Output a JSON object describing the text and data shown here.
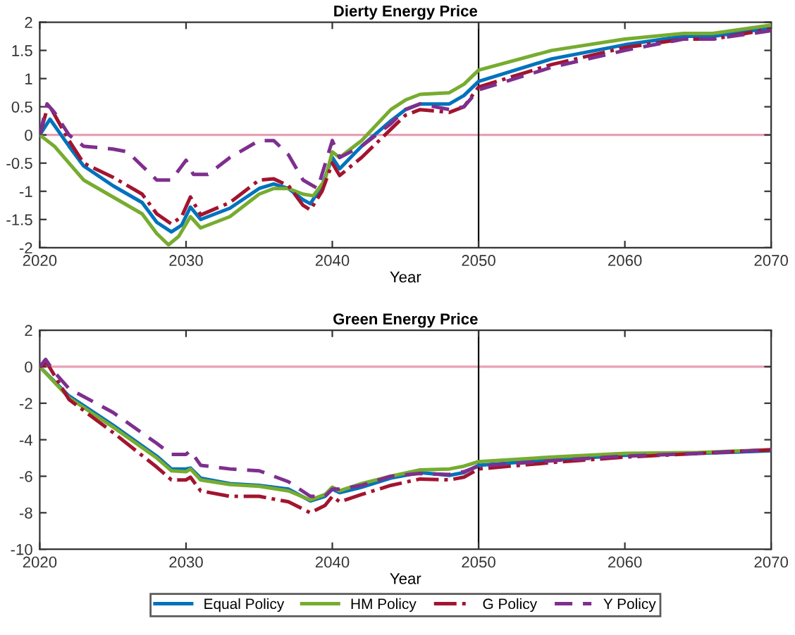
{
  "chart_data": [
    {
      "type": "line",
      "title": "Dierty Energy Price",
      "xlabel": "Year",
      "xlim": [
        2020,
        2070
      ],
      "xticks": [
        2020,
        2030,
        2040,
        2050,
        2060,
        2070
      ],
      "ylim": [
        -2,
        2
      ],
      "yticks": [
        -2,
        -1.5,
        -1,
        -0.5,
        0,
        0.5,
        1,
        1.5,
        2
      ],
      "grid": false,
      "ref_lines": [
        {
          "axis": "y",
          "value": 0,
          "color": "#e8a0b4"
        },
        {
          "axis": "x",
          "value": 2050,
          "color": "#000000"
        }
      ],
      "series": [
        {
          "color": "#0072bd",
          "line_style": "solid",
          "x": [
            2020,
            2020.7,
            2022,
            2023,
            2025,
            2027,
            2028,
            2029,
            2029.7,
            2030.3,
            2031,
            2033,
            2035,
            2036,
            2037,
            2038,
            2038.5,
            2039.3,
            2040,
            2040.5,
            2042,
            2044,
            2045,
            2046,
            2048,
            2049,
            2050,
            2055,
            2060,
            2064,
            2066,
            2070
          ],
          "values": [
            0,
            0.28,
            -0.2,
            -0.55,
            -0.9,
            -1.2,
            -1.55,
            -1.72,
            -1.6,
            -1.28,
            -1.5,
            -1.3,
            -0.95,
            -0.87,
            -0.95,
            -1.15,
            -1.22,
            -0.9,
            -0.4,
            -0.6,
            -0.2,
            0.25,
            0.45,
            0.55,
            0.55,
            0.7,
            0.95,
            1.35,
            1.6,
            1.75,
            1.75,
            1.9
          ]
        },
        {
          "color": "#77ac30",
          "line_style": "solid",
          "x": [
            2020,
            2021,
            2022,
            2023,
            2025,
            2027,
            2028,
            2028.8,
            2029.5,
            2030.3,
            2031,
            2033,
            2035,
            2036,
            2037,
            2038,
            2038.7,
            2039.5,
            2040,
            2040.5,
            2042,
            2044,
            2045,
            2046,
            2048,
            2049,
            2050,
            2055,
            2060,
            2064,
            2066,
            2070
          ],
          "values": [
            0,
            -0.2,
            -0.5,
            -0.8,
            -1.1,
            -1.4,
            -1.75,
            -1.95,
            -1.8,
            -1.45,
            -1.65,
            -1.45,
            -1.05,
            -0.95,
            -0.95,
            -1.05,
            -1.08,
            -0.8,
            -0.3,
            -0.4,
            -0.1,
            0.45,
            0.62,
            0.72,
            0.75,
            0.9,
            1.15,
            1.5,
            1.7,
            1.8,
            1.8,
            1.95
          ]
        },
        {
          "color": "#a2142f",
          "line_style": "dashdot",
          "x": [
            2020,
            2020.6,
            2022,
            2023,
            2025,
            2027,
            2028,
            2029,
            2029.7,
            2030.3,
            2031,
            2033,
            2035,
            2036,
            2037,
            2038,
            2038.5,
            2039.3,
            2040,
            2040.5,
            2042,
            2044,
            2045,
            2046,
            2048,
            2049,
            2050,
            2055,
            2060,
            2064,
            2066,
            2070
          ],
          "values": [
            0,
            0.55,
            -0.1,
            -0.5,
            -0.75,
            -1.05,
            -1.4,
            -1.58,
            -1.45,
            -1.1,
            -1.42,
            -1.2,
            -0.8,
            -0.78,
            -0.9,
            -1.25,
            -1.33,
            -1.0,
            -0.5,
            -0.72,
            -0.4,
            0.1,
            0.35,
            0.45,
            0.4,
            0.5,
            0.85,
            1.25,
            1.55,
            1.7,
            1.7,
            1.88
          ]
        },
        {
          "color": "#7e2f8e",
          "line_style": "dashed",
          "x": [
            2020,
            2020.5,
            2021,
            2022,
            2023,
            2025,
            2026,
            2027,
            2028,
            2029,
            2030,
            2030.5,
            2031.5,
            2033,
            2035,
            2036,
            2037,
            2038,
            2039,
            2040,
            2040.5,
            2042,
            2044,
            2045,
            2046,
            2048,
            2049,
            2050,
            2055,
            2060,
            2064,
            2066,
            2070
          ],
          "values": [
            0,
            0.55,
            0.4,
            0.0,
            -0.2,
            -0.25,
            -0.3,
            -0.55,
            -0.8,
            -0.8,
            -0.45,
            -0.7,
            -0.7,
            -0.4,
            -0.1,
            -0.1,
            -0.35,
            -0.8,
            -0.95,
            -0.1,
            -0.4,
            -0.2,
            0.2,
            0.45,
            0.55,
            0.45,
            0.5,
            0.8,
            1.2,
            1.5,
            1.7,
            1.7,
            1.85
          ]
        }
      ]
    },
    {
      "type": "line",
      "title": "Green Energy Price",
      "xlabel": "Year",
      "xlim": [
        2020,
        2070
      ],
      "xticks": [
        2020,
        2030,
        2040,
        2050,
        2060,
        2070
      ],
      "ylim": [
        -10,
        2
      ],
      "yticks": [
        -10,
        -8,
        -6,
        -4,
        -2,
        0,
        2
      ],
      "grid": false,
      "legend": "bottom",
      "ref_lines": [
        {
          "axis": "y",
          "value": 0,
          "color": "#e8a0b4"
        },
        {
          "axis": "x",
          "value": 2050,
          "color": "#000000"
        }
      ],
      "series": [
        {
          "name": "Equal Policy",
          "color": "#0072bd",
          "line_style": "solid",
          "x": [
            2020,
            2022,
            2025,
            2028,
            2029,
            2030,
            2030.3,
            2031,
            2033,
            2035,
            2037,
            2038.5,
            2039.5,
            2040,
            2040.5,
            2042,
            2044,
            2046,
            2048,
            2049,
            2050,
            2055,
            2060,
            2065,
            2070
          ],
          "values": [
            0,
            -1.6,
            -3.2,
            -4.9,
            -5.6,
            -5.6,
            -5.55,
            -6.1,
            -6.4,
            -6.5,
            -6.7,
            -7.35,
            -7.1,
            -6.7,
            -6.9,
            -6.6,
            -6.1,
            -5.8,
            -5.95,
            -5.8,
            -5.4,
            -5.1,
            -4.85,
            -4.75,
            -4.6
          ]
        },
        {
          "name": "HM Policy",
          "color": "#77ac30",
          "line_style": "solid",
          "x": [
            2020,
            2022,
            2025,
            2028,
            2029,
            2030,
            2030.3,
            2031,
            2033,
            2035,
            2037,
            2038.5,
            2039.5,
            2040,
            2040.5,
            2042,
            2044,
            2046,
            2048,
            2049,
            2050,
            2055,
            2060,
            2065,
            2070
          ],
          "values": [
            0,
            -1.7,
            -3.3,
            -5.0,
            -5.7,
            -5.75,
            -5.6,
            -6.2,
            -6.45,
            -6.55,
            -6.8,
            -7.3,
            -7.0,
            -6.6,
            -6.8,
            -6.4,
            -6.0,
            -5.65,
            -5.6,
            -5.45,
            -5.2,
            -4.95,
            -4.75,
            -4.7,
            -4.55
          ]
        },
        {
          "name": "G Policy",
          "color": "#a2142f",
          "line_style": "dashdot",
          "x": [
            2020,
            2020.5,
            2022,
            2025,
            2028,
            2029,
            2030,
            2030.3,
            2031,
            2033,
            2035,
            2037,
            2038.5,
            2039.5,
            2040,
            2040.5,
            2042,
            2044,
            2046,
            2048,
            2049,
            2050,
            2055,
            2060,
            2065,
            2070
          ],
          "values": [
            0,
            0.2,
            -1.8,
            -3.6,
            -5.5,
            -6.2,
            -6.2,
            -6.05,
            -6.8,
            -7.1,
            -7.1,
            -7.4,
            -8.0,
            -7.6,
            -7.1,
            -7.4,
            -7.0,
            -6.5,
            -6.15,
            -6.2,
            -6.05,
            -5.6,
            -5.25,
            -4.95,
            -4.75,
            -4.55
          ]
        },
        {
          "name": "Y Policy",
          "color": "#7e2f8e",
          "line_style": "dashed",
          "x": [
            2020,
            2020.4,
            2021,
            2022,
            2025,
            2028,
            2029,
            2030,
            2030.3,
            2031,
            2033,
            2035,
            2037,
            2038.5,
            2039.5,
            2040,
            2040.5,
            2042,
            2044,
            2046,
            2048,
            2049,
            2050,
            2055,
            2060,
            2065,
            2070
          ],
          "values": [
            0,
            0.4,
            -0.3,
            -1.2,
            -2.5,
            -4.2,
            -4.8,
            -4.8,
            -4.6,
            -5.4,
            -5.6,
            -5.7,
            -6.3,
            -7.1,
            -7.1,
            -6.7,
            -6.7,
            -6.5,
            -6.0,
            -5.85,
            -5.9,
            -5.75,
            -5.45,
            -5.15,
            -4.9,
            -4.75,
            -4.55
          ]
        }
      ]
    }
  ]
}
